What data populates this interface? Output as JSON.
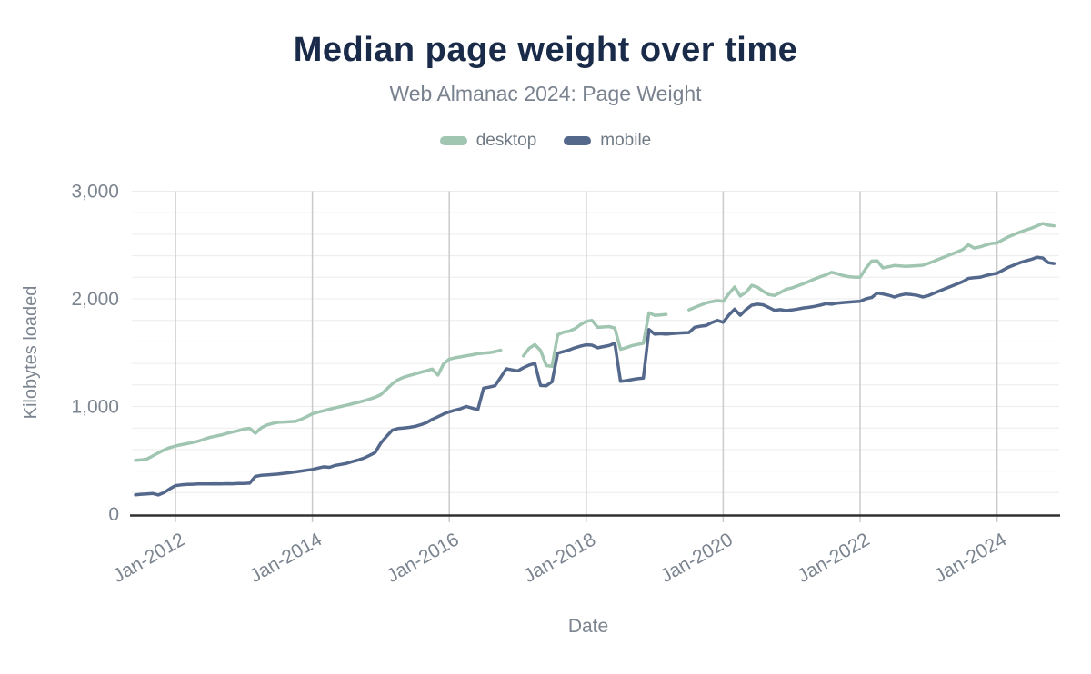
{
  "header": {
    "title": "Median page weight over time",
    "subtitle": "Web Almanac 2024: Page Weight"
  },
  "legend": [
    {
      "label": "desktop",
      "color": "#a0c5b1"
    },
    {
      "label": "mobile",
      "color": "#54688c"
    }
  ],
  "colors": {
    "title": "#1a2b4a",
    "muted_text": "#7b848f",
    "axis_line": "#303030",
    "vertical_grid": "#cbcbcb",
    "horizontal_grid": "#ececec",
    "desktop": "#a0c5b1",
    "mobile": "#54688c"
  },
  "chart_data": {
    "type": "line",
    "title": "Median page weight over time",
    "subtitle": "Web Almanac 2024: Page Weight",
    "xlabel": "Date",
    "ylabel": "Kilobytes loaded",
    "ylim": [
      0,
      3000
    ],
    "y_ticks": [
      {
        "value": 0,
        "label": "0"
      },
      {
        "value": 1000,
        "label": "1,000"
      },
      {
        "value": 2000,
        "label": "2,000"
      },
      {
        "value": 3000,
        "label": "3,000"
      }
    ],
    "y_minor_grid_step": 200,
    "x_ticks": [
      {
        "month": "2012-01",
        "label": "Jan-2012"
      },
      {
        "month": "2014-01",
        "label": "Jan-2014"
      },
      {
        "month": "2016-01",
        "label": "Jan-2016"
      },
      {
        "month": "2018-01",
        "label": "Jan-2018"
      },
      {
        "month": "2020-01",
        "label": "Jan-2020"
      },
      {
        "month": "2022-01",
        "label": "Jan-2022"
      },
      {
        "month": "2024-01",
        "label": "Jan-2024"
      }
    ],
    "x_range": [
      "2011-06",
      "2024-11"
    ],
    "grid": "both",
    "legend_position": "top-center",
    "series": [
      {
        "name": "desktop",
        "color": "#a0c5b1",
        "unit": "KB",
        "start": "2011-06",
        "values": [
          500,
          504,
          512,
          540,
          570,
          596,
          618,
          633,
          645,
          655,
          666,
          678,
          695,
          712,
          724,
          735,
          750,
          763,
          775,
          790,
          797,
          752,
          800,
          828,
          842,
          853,
          856,
          858,
          862,
          880,
          905,
          932,
          948,
          960,
          975,
          988,
          1000,
          1012,
          1025,
          1038,
          1052,
          1068,
          1085,
          1110,
          1160,
          1210,
          1248,
          1272,
          1288,
          1302,
          1318,
          1332,
          1348,
          1292,
          1395,
          1440,
          1452,
          1462,
          1472,
          1480,
          1490,
          1495,
          1500,
          1510,
          1522,
          null,
          null,
          null,
          1470,
          1540,
          1575,
          1520,
          1380,
          1373,
          1665,
          1690,
          1700,
          1722,
          1760,
          1790,
          1800,
          1735,
          1738,
          1743,
          1728,
          1531,
          1546,
          1565,
          1576,
          1587,
          1870,
          1846,
          1851,
          1856,
          null,
          null,
          null,
          1898,
          1920,
          1941,
          1961,
          1974,
          1983,
          1976,
          2048,
          2110,
          2026,
          2062,
          2125,
          2108,
          2070,
          2040,
          2031,
          2058,
          2088,
          2100,
          2120,
          2139,
          2160,
          2184,
          2205,
          2223,
          2246,
          2234,
          2216,
          2206,
          2202,
          2201,
          2282,
          2350,
          2354,
          2288,
          2298,
          2310,
          2306,
          2302,
          2305,
          2308,
          2312,
          2330,
          2350,
          2372,
          2393,
          2414,
          2435,
          2458,
          2502,
          2472,
          2482,
          2500,
          2514,
          2520,
          2548,
          2576,
          2598,
          2619,
          2638,
          2656,
          2678,
          2700,
          2684,
          2678
        ]
      },
      {
        "name": "mobile",
        "color": "#54688c",
        "unit": "KB",
        "start": "2011-06",
        "values": [
          180,
          185,
          188,
          192,
          178,
          200,
          235,
          265,
          272,
          276,
          278,
          280,
          281,
          280,
          282,
          281,
          283,
          282,
          284,
          285,
          288,
          350,
          360,
          364,
          368,
          372,
          379,
          385,
          392,
          400,
          408,
          415,
          428,
          440,
          435,
          452,
          462,
          472,
          488,
          502,
          520,
          545,
          572,
          660,
          722,
          780,
          795,
          800,
          806,
          815,
          830,
          850,
          880,
          905,
          930,
          950,
          965,
          980,
          1000,
          985,
          970,
          1170,
          1180,
          1192,
          1270,
          1350,
          1340,
          1330,
          1360,
          1385,
          1400,
          1195,
          1192,
          1230,
          1495,
          1510,
          1525,
          1545,
          1560,
          1573,
          1570,
          1545,
          1556,
          1566,
          1587,
          1234,
          1240,
          1250,
          1258,
          1263,
          1715,
          1672,
          1676,
          1672,
          1678,
          1681,
          1684,
          1687,
          1735,
          1746,
          1752,
          1780,
          1799,
          1782,
          1850,
          1904,
          1847,
          1900,
          1941,
          1950,
          1944,
          1920,
          1893,
          1900,
          1890,
          1896,
          1905,
          1915,
          1921,
          1930,
          1941,
          1955,
          1950,
          1960,
          1965,
          1970,
          1974,
          1977,
          2000,
          2012,
          2053,
          2045,
          2034,
          2017,
          2034,
          2045,
          2040,
          2032,
          2018,
          2030,
          2053,
          2075,
          2096,
          2117,
          2138,
          2160,
          2190,
          2196,
          2200,
          2215,
          2228,
          2237,
          2265,
          2294,
          2315,
          2336,
          2352,
          2366,
          2386,
          2380,
          2336,
          2328
        ]
      }
    ]
  }
}
